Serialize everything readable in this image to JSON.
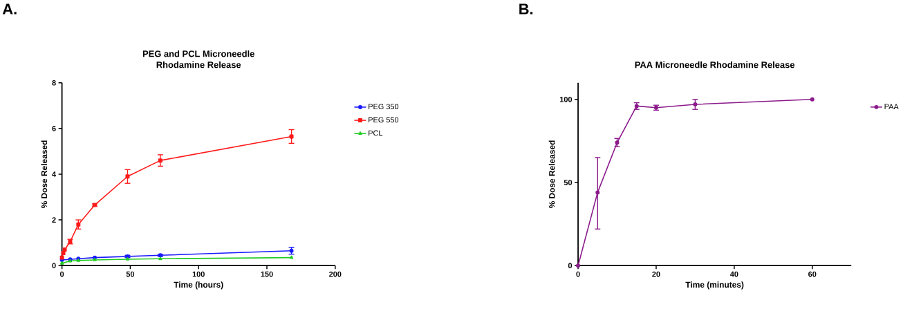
{
  "chart_data": [
    {
      "type": "line",
      "title": "PEG and PCL Microneedle\nRhodamine Release",
      "xlabel": "Time (hours)",
      "ylabel": "% Dose Released",
      "annotations": [
        "A."
      ],
      "xlim": [
        0,
        200
      ],
      "xticks": [
        0,
        50,
        100,
        150,
        200
      ],
      "ylim": [
        0,
        8
      ],
      "yticks": [
        0,
        2,
        4,
        6,
        8
      ],
      "legend": "right",
      "grid": false,
      "series": [
        {
          "name": "PEG 350",
          "color": "#1a1aff",
          "marker": "circle",
          "x": [
            0,
            6,
            12,
            24,
            48,
            72,
            168
          ],
          "values": [
            0.25,
            0.27,
            0.3,
            0.35,
            0.4,
            0.45,
            0.65
          ],
          "errors": [
            null,
            null,
            null,
            null,
            0.05,
            0.05,
            0.15
          ]
        },
        {
          "name": "PEG 550",
          "color": "#ff1a1a",
          "marker": "square",
          "x": [
            0,
            1,
            2,
            6,
            12,
            24,
            48,
            72,
            168
          ],
          "values": [
            0.35,
            0.55,
            0.7,
            1.05,
            1.8,
            2.65,
            3.9,
            4.6,
            5.65
          ],
          "errors": [
            null,
            null,
            null,
            0.1,
            0.2,
            0.05,
            0.3,
            0.25,
            0.3
          ]
        },
        {
          "name": "PCL",
          "color": "#22cc22",
          "marker": "triangle",
          "x": [
            0,
            6,
            12,
            24,
            48,
            72,
            168
          ],
          "values": [
            0.1,
            0.2,
            0.22,
            0.25,
            0.28,
            0.3,
            0.35
          ],
          "errors": [
            null,
            null,
            null,
            null,
            null,
            null,
            null
          ]
        }
      ]
    },
    {
      "type": "line",
      "title": "PAA Microneedle Rhodamine Release",
      "xlabel": "Time (minutes)",
      "ylabel": "% Dose Released",
      "annotations": [
        "B."
      ],
      "xlim": [
        0,
        70
      ],
      "xticks": [
        0,
        20,
        40,
        60
      ],
      "ylim": [
        0,
        110
      ],
      "yticks": [
        0,
        50,
        100
      ],
      "legend": "right",
      "grid": false,
      "series": [
        {
          "name": "PAA",
          "color": "#8b1a8b",
          "marker": "circle",
          "x": [
            0,
            5,
            10,
            15,
            20,
            30,
            60
          ],
          "values": [
            0,
            44,
            74,
            96,
            95,
            97,
            100
          ],
          "errors": [
            null,
            [
              22,
              65
            ],
            2.5,
            2,
            1.5,
            3,
            null
          ]
        }
      ]
    }
  ]
}
